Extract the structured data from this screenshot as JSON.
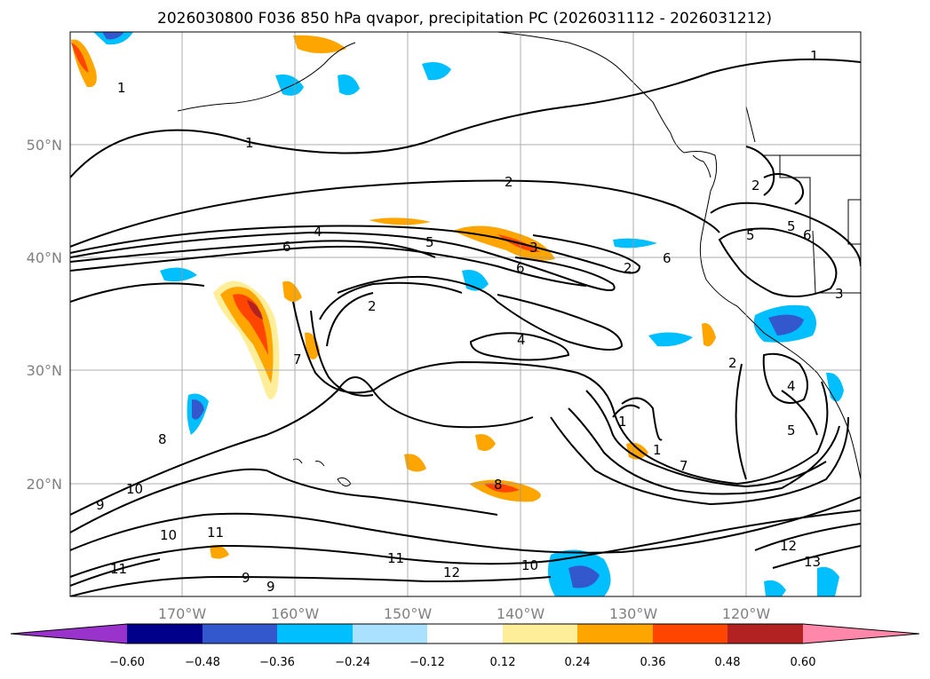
{
  "title": "2026030800 F036 850 hPa qvapor, precipitation PC (2026031112 - 2026031212)",
  "lat_labels": [
    "50°N",
    "40°N",
    "30°N",
    "20°N"
  ],
  "lon_labels": [
    "170°W",
    "160°W",
    "150°W",
    "140°W",
    "130°W",
    "120°W"
  ],
  "colorbar": {
    "ticks": [
      "−0.60",
      "−0.48",
      "−0.36",
      "−0.24",
      "−0.12",
      "0.12",
      "0.24",
      "0.36",
      "0.48",
      "0.60"
    ],
    "colors": [
      "#9933cc",
      "#00008b",
      "#3357cc",
      "#00bfff",
      "#aae1ff",
      "#ffffff",
      "#ffee99",
      "#ffa500",
      "#ff4500",
      "#b22222",
      "#ff88aa"
    ]
  },
  "contour_labels": [
    "1",
    "1",
    "2",
    "4",
    "6",
    "5",
    "3",
    "6",
    "2",
    "2",
    "4",
    "7",
    "8",
    "9",
    "10",
    "11",
    "11",
    "10",
    "12",
    "13",
    "12",
    "1",
    "1",
    "7",
    "8",
    "5",
    "6",
    "5",
    "2",
    "4",
    "5",
    "6",
    "3",
    "2",
    "1",
    "9",
    "10",
    "11",
    "9"
  ]
}
